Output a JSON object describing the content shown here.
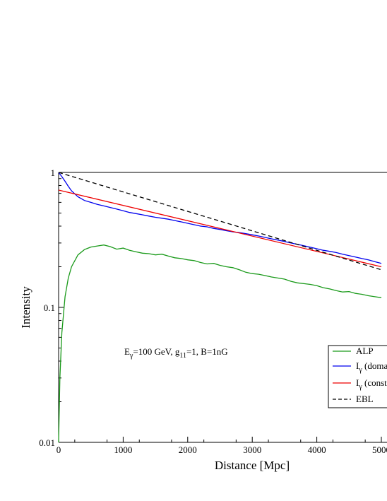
{
  "chart_data": {
    "type": "line",
    "xlabel": "Distance [Mpc]",
    "ylabel": "Intensity",
    "xlim": [
      0,
      5000
    ],
    "ylim": [
      0.01,
      1
    ],
    "yscale": "log",
    "x_ticks": [
      "0",
      "1000",
      "2000",
      "3000",
      "4000",
      "5000"
    ],
    "y_ticks": [
      "0.01",
      "0.1",
      "1"
    ],
    "annotation": {
      "E": "E",
      "E_sub": "γ",
      "E_rest": "=100 GeV, g",
      "g_sub": "11",
      "tail": "=1, B=1nG"
    },
    "legend": {
      "placement": "lower-right",
      "entries": [
        {
          "label": "ALP",
          "sub": "",
          "rest": "",
          "color": "#1a9a1a",
          "dash": "solid"
        },
        {
          "label": "I",
          "sub": "γ",
          "rest": " (domain)",
          "color": "#0000ee",
          "dash": "solid"
        },
        {
          "label": "I",
          "sub": "γ",
          "rest": " (const)",
          "color": "#ee0000",
          "dash": "solid"
        },
        {
          "label": "EBL",
          "sub": "",
          "rest": "",
          "color": "#000000",
          "dash": "dashed"
        }
      ]
    },
    "series": [
      {
        "name": "ALP",
        "color": "#1a9a1a",
        "x": [
          0,
          20,
          50,
          100,
          150,
          200,
          300,
          400,
          500,
          600,
          700,
          800,
          900,
          1000,
          1100,
          1200,
          1300,
          1400,
          1500,
          1600,
          1700,
          1800,
          1900,
          2000,
          2100,
          2200,
          2300,
          2400,
          2500,
          2600,
          2700,
          2800,
          2900,
          3000,
          3100,
          3200,
          3300,
          3400,
          3500,
          3600,
          3700,
          3800,
          3900,
          4000,
          4100,
          4200,
          4300,
          4400,
          4500,
          4600,
          4700,
          4800,
          4900,
          5000
        ],
        "y": [
          0.01,
          0.03,
          0.065,
          0.12,
          0.165,
          0.2,
          0.245,
          0.268,
          0.28,
          0.285,
          0.29,
          0.282,
          0.27,
          0.275,
          0.265,
          0.258,
          0.252,
          0.25,
          0.245,
          0.248,
          0.24,
          0.233,
          0.23,
          0.225,
          0.222,
          0.215,
          0.21,
          0.212,
          0.205,
          0.2,
          0.197,
          0.19,
          0.182,
          0.178,
          0.176,
          0.172,
          0.168,
          0.165,
          0.162,
          0.156,
          0.152,
          0.15,
          0.148,
          0.145,
          0.14,
          0.137,
          0.133,
          0.13,
          0.131,
          0.127,
          0.125,
          0.122,
          0.12,
          0.118
        ]
      },
      {
        "name": "I_γ (domain)",
        "color": "#0000ee",
        "x": [
          0,
          50,
          100,
          150,
          200,
          300,
          400,
          500,
          600,
          700,
          800,
          900,
          1000,
          1100,
          1200,
          1300,
          1400,
          1500,
          1600,
          1700,
          1800,
          1900,
          2000,
          2100,
          2200,
          2300,
          2400,
          2500,
          2600,
          2700,
          2800,
          2900,
          3000,
          3100,
          3200,
          3300,
          3400,
          3500,
          3600,
          3700,
          3800,
          3900,
          4000,
          4100,
          4200,
          4300,
          4400,
          4500,
          4600,
          4700,
          4800,
          4900,
          5000
        ],
        "y": [
          1.0,
          0.93,
          0.86,
          0.79,
          0.73,
          0.66,
          0.62,
          0.6,
          0.58,
          0.565,
          0.55,
          0.535,
          0.52,
          0.505,
          0.495,
          0.485,
          0.475,
          0.465,
          0.458,
          0.45,
          0.44,
          0.43,
          0.42,
          0.41,
          0.4,
          0.395,
          0.385,
          0.378,
          0.37,
          0.363,
          0.358,
          0.352,
          0.345,
          0.338,
          0.33,
          0.322,
          0.315,
          0.308,
          0.3,
          0.293,
          0.286,
          0.279,
          0.272,
          0.265,
          0.26,
          0.255,
          0.248,
          0.242,
          0.236,
          0.23,
          0.225,
          0.218,
          0.212
        ]
      },
      {
        "name": "I_γ (const)",
        "color": "#ee0000",
        "x": [
          0,
          5000
        ],
        "y": [
          0.74,
          0.2
        ]
      },
      {
        "name": "EBL",
        "color": "#000000",
        "dash": "dashed",
        "x": [
          0,
          5000
        ],
        "y": [
          1.0,
          0.19
        ]
      }
    ]
  }
}
